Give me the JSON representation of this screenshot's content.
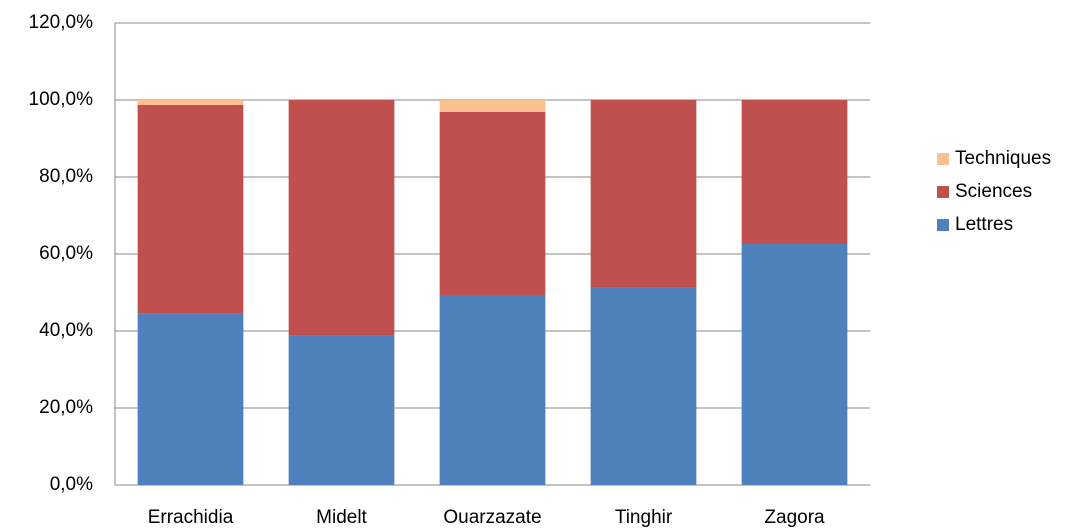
{
  "chart_data": {
    "type": "stacked_bar",
    "categories": [
      "Errachidia",
      "Midelt",
      "Ouarzazate",
      "Tinghir",
      "Zagora"
    ],
    "series": [
      {
        "name": "Lettres",
        "color": "#4f81bd",
        "values": [
          44.5,
          38.8,
          49.1,
          51.2,
          62.6
        ]
      },
      {
        "name": "Sciences",
        "color": "#c0504d",
        "values": [
          54.2,
          61.2,
          47.8,
          48.8,
          37.4
        ]
      },
      {
        "name": "Techniques",
        "color": "#fac090",
        "values": [
          1.3,
          0,
          3.1,
          0,
          0
        ]
      }
    ],
    "ylim": [
      0,
      120
    ],
    "yticks": [
      {
        "value": 0,
        "label": "0,0%"
      },
      {
        "value": 20,
        "label": "20,0%"
      },
      {
        "value": 40,
        "label": "40,0%"
      },
      {
        "value": 60,
        "label": "60,0%"
      },
      {
        "value": 80,
        "label": "80,0%"
      },
      {
        "value": 100,
        "label": "100,0%"
      },
      {
        "value": 120,
        "label": "120,0%"
      }
    ],
    "grid": true,
    "legend": "right"
  }
}
